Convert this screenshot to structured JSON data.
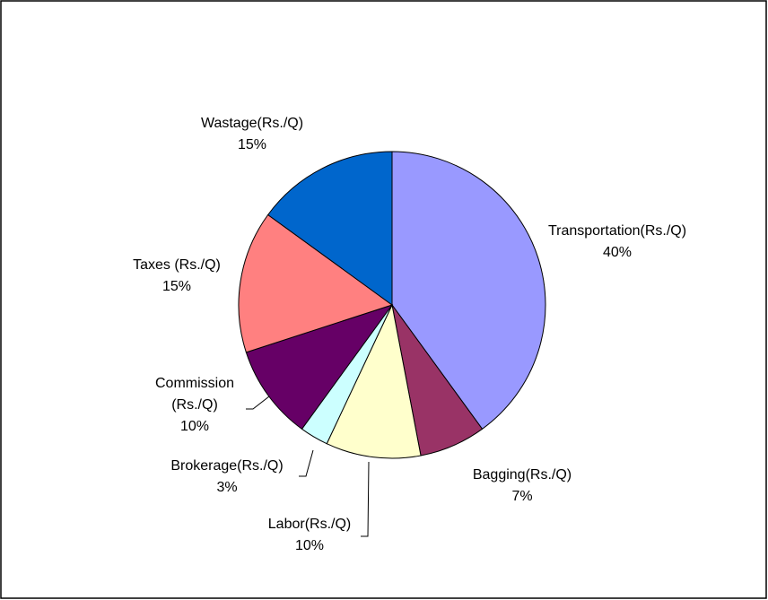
{
  "chart_data": {
    "type": "pie",
    "categories": [
      "Transportation(Rs./Q)",
      "Bagging(Rs./Q)",
      "Labor(Rs./Q)",
      "Brokerage(Rs./Q)",
      "Commission (Rs./Q)",
      "Taxes (Rs./Q)",
      "Wastage(Rs./Q)"
    ],
    "values": [
      40,
      7,
      10,
      3,
      10,
      15,
      15
    ],
    "value_labels": [
      "40%",
      "7%",
      "10%",
      "3%",
      "10%",
      "15%",
      "15%"
    ],
    "colors": [
      "#9999ff",
      "#993366",
      "#ffffcc",
      "#ccffff",
      "#660066",
      "#ff8080",
      "#0066cc"
    ]
  }
}
